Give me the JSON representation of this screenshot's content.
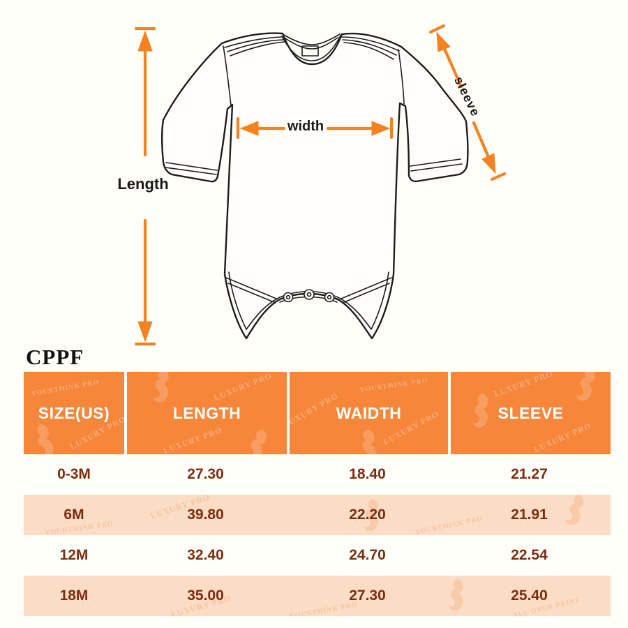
{
  "page": {
    "background": "#FFFEF8"
  },
  "diagram": {
    "labels": {
      "length": "Length",
      "width": "width",
      "sleeve": "sleeve"
    },
    "arrow_color": "#F58220",
    "line_color": "#1d1d1d"
  },
  "table": {
    "caption": "CPPF",
    "columns": [
      "SIZE(US)",
      "LENGTH",
      "WAIDTH",
      "SLEEVE"
    ],
    "rows": [
      [
        "0-3M",
        "27.30",
        "18.40",
        "21.27"
      ],
      [
        "6M",
        "39.80",
        "22.20",
        "21.91"
      ],
      [
        "12M",
        "32.40",
        "24.70",
        "22.54"
      ],
      [
        "18M",
        "35.00",
        "27.30",
        "25.40"
      ]
    ],
    "header_bg": "#F5863A",
    "alt_row_bg": "#FBDCC4",
    "value_color": "#7B2D12",
    "header_text_color": "#FFFFFF",
    "watermarks": [
      "LUXURY PRO",
      "YOURTHINK PRO",
      "ALL OVER PRINT"
    ]
  }
}
